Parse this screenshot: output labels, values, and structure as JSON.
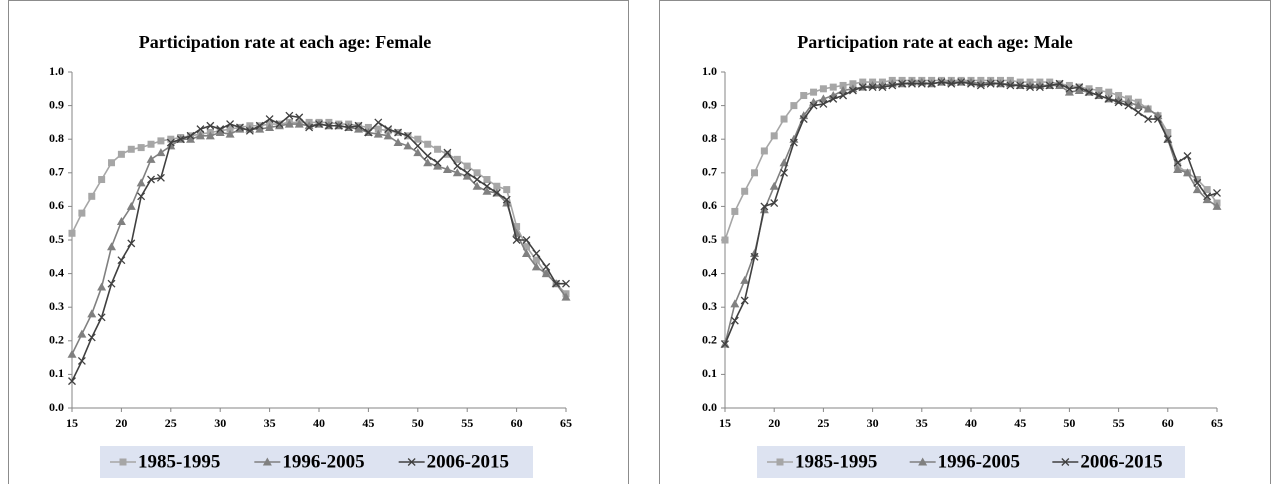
{
  "chart_data": [
    {
      "type": "line",
      "title": "Participation rate at each age: Female",
      "x": [
        15,
        16,
        17,
        18,
        19,
        20,
        21,
        22,
        23,
        24,
        25,
        26,
        27,
        28,
        29,
        30,
        31,
        32,
        33,
        34,
        35,
        36,
        37,
        38,
        39,
        40,
        41,
        42,
        43,
        44,
        45,
        46,
        47,
        48,
        49,
        50,
        51,
        52,
        53,
        54,
        55,
        56,
        57,
        58,
        59,
        60,
        61,
        62,
        63,
        64,
        65
      ],
      "xlim": [
        15,
        65
      ],
      "xticks": [
        15,
        20,
        25,
        30,
        35,
        40,
        45,
        50,
        55,
        60,
        65
      ],
      "ylim": [
        0,
        1
      ],
      "yticks": [
        {
          "value": 0,
          "label": "0.0"
        },
        0.1,
        0.2,
        0.3,
        0.4,
        0.5,
        0.6,
        0.7,
        0.8,
        0.9,
        {
          "value": 1,
          "label": "1.0"
        }
      ],
      "legend": "bottom",
      "series": [
        {
          "name": "1985-1995",
          "color": "#a6a6a6",
          "marker": "square",
          "values": [
            0.52,
            0.58,
            0.63,
            0.68,
            0.73,
            0.755,
            0.77,
            0.775,
            0.785,
            0.795,
            0.8,
            0.805,
            0.81,
            0.815,
            0.82,
            0.825,
            0.83,
            0.835,
            0.84,
            0.84,
            0.845,
            0.845,
            0.85,
            0.85,
            0.85,
            0.85,
            0.85,
            0.845,
            0.845,
            0.84,
            0.835,
            0.83,
            0.825,
            0.82,
            0.81,
            0.8,
            0.785,
            0.77,
            0.755,
            0.74,
            0.72,
            0.7,
            0.68,
            0.66,
            0.65,
            0.54,
            0.48,
            0.44,
            0.4,
            0.37,
            0.34
          ]
        },
        {
          "name": "1996-2005",
          "color": "#808080",
          "marker": "triangle",
          "values": [
            0.16,
            0.22,
            0.28,
            0.36,
            0.48,
            0.555,
            0.6,
            0.67,
            0.74,
            0.76,
            0.78,
            0.8,
            0.8,
            0.81,
            0.81,
            0.82,
            0.815,
            0.83,
            0.83,
            0.83,
            0.835,
            0.84,
            0.845,
            0.845,
            0.84,
            0.845,
            0.84,
            0.84,
            0.835,
            0.83,
            0.82,
            0.815,
            0.81,
            0.79,
            0.78,
            0.76,
            0.73,
            0.72,
            0.71,
            0.7,
            0.69,
            0.66,
            0.645,
            0.64,
            0.61,
            0.52,
            0.46,
            0.42,
            0.4,
            0.37,
            0.33
          ]
        },
        {
          "name": "2006-2015",
          "color": "#404040",
          "marker": "x",
          "values": [
            0.08,
            0.14,
            0.21,
            0.27,
            0.37,
            0.44,
            0.49,
            0.63,
            0.68,
            0.685,
            0.79,
            0.8,
            0.81,
            0.83,
            0.84,
            0.83,
            0.845,
            0.835,
            0.825,
            0.84,
            0.86,
            0.845,
            0.87,
            0.865,
            0.835,
            0.845,
            0.84,
            0.84,
            0.835,
            0.84,
            0.82,
            0.85,
            0.83,
            0.82,
            0.81,
            0.78,
            0.75,
            0.73,
            0.76,
            0.72,
            0.7,
            0.68,
            0.66,
            0.64,
            0.62,
            0.5,
            0.5,
            0.46,
            0.42,
            0.37,
            0.37
          ]
        }
      ]
    },
    {
      "type": "line",
      "title": "Participation rate at each age: Male",
      "x": [
        15,
        16,
        17,
        18,
        19,
        20,
        21,
        22,
        23,
        24,
        25,
        26,
        27,
        28,
        29,
        30,
        31,
        32,
        33,
        34,
        35,
        36,
        37,
        38,
        39,
        40,
        41,
        42,
        43,
        44,
        45,
        46,
        47,
        48,
        49,
        50,
        51,
        52,
        53,
        54,
        55,
        56,
        57,
        58,
        59,
        60,
        61,
        62,
        63,
        64,
        65
      ],
      "xlim": [
        15,
        65
      ],
      "xticks": [
        15,
        20,
        25,
        30,
        35,
        40,
        45,
        50,
        55,
        60,
        65
      ],
      "ylim": [
        0,
        1
      ],
      "yticks": [
        {
          "value": 0,
          "label": "0.0"
        },
        0.1,
        0.2,
        0.3,
        0.4,
        0.5,
        0.6,
        0.7,
        0.8,
        0.9,
        {
          "value": 1,
          "label": "1.0"
        }
      ],
      "legend": "bottom",
      "series": [
        {
          "name": "1985-1995",
          "color": "#a6a6a6",
          "marker": "square",
          "values": [
            0.5,
            0.585,
            0.645,
            0.7,
            0.765,
            0.81,
            0.86,
            0.9,
            0.93,
            0.94,
            0.95,
            0.955,
            0.96,
            0.965,
            0.97,
            0.97,
            0.97,
            0.975,
            0.975,
            0.975,
            0.975,
            0.975,
            0.975,
            0.975,
            0.975,
            0.975,
            0.975,
            0.975,
            0.975,
            0.975,
            0.97,
            0.97,
            0.97,
            0.97,
            0.965,
            0.96,
            0.955,
            0.95,
            0.945,
            0.94,
            0.93,
            0.92,
            0.91,
            0.89,
            0.87,
            0.82,
            0.72,
            0.7,
            0.68,
            0.65,
            0.61
          ]
        },
        {
          "name": "1996-2005",
          "color": "#808080",
          "marker": "triangle",
          "values": [
            0.19,
            0.31,
            0.38,
            0.46,
            0.59,
            0.66,
            0.73,
            0.8,
            0.87,
            0.91,
            0.92,
            0.93,
            0.945,
            0.95,
            0.955,
            0.96,
            0.96,
            0.965,
            0.965,
            0.97,
            0.97,
            0.965,
            0.97,
            0.97,
            0.97,
            0.97,
            0.965,
            0.97,
            0.965,
            0.965,
            0.96,
            0.96,
            0.96,
            0.96,
            0.96,
            0.94,
            0.945,
            0.94,
            0.93,
            0.92,
            0.915,
            0.91,
            0.9,
            0.89,
            0.87,
            0.8,
            0.71,
            0.7,
            0.65,
            0.62,
            0.6
          ]
        },
        {
          "name": "2006-2015",
          "color": "#404040",
          "marker": "x",
          "values": [
            0.19,
            0.26,
            0.32,
            0.45,
            0.6,
            0.61,
            0.7,
            0.79,
            0.86,
            0.9,
            0.905,
            0.92,
            0.93,
            0.945,
            0.955,
            0.955,
            0.955,
            0.96,
            0.965,
            0.965,
            0.965,
            0.965,
            0.97,
            0.965,
            0.97,
            0.965,
            0.96,
            0.965,
            0.965,
            0.96,
            0.96,
            0.955,
            0.955,
            0.96,
            0.965,
            0.95,
            0.955,
            0.94,
            0.93,
            0.92,
            0.91,
            0.9,
            0.88,
            0.86,
            0.86,
            0.8,
            0.73,
            0.75,
            0.67,
            0.63,
            0.64
          ]
        }
      ]
    }
  ]
}
